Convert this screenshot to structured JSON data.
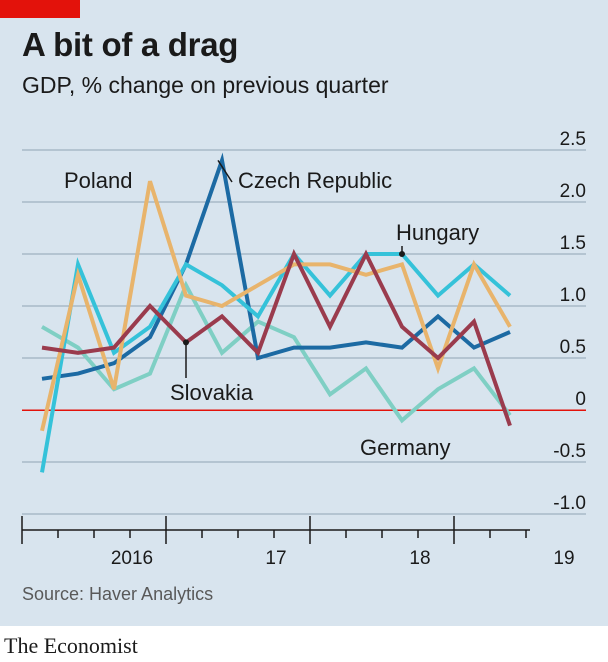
{
  "title": "A bit of a drag",
  "subtitle": "GDP, % change on previous quarter",
  "source": "Source: Haver Analytics",
  "brand": "The Economist",
  "colors": {
    "red_tag": "#e3120b",
    "zero_line": "#e3120b",
    "Czech Republic": "#1c6aa3",
    "Poland": "#e8b46c",
    "Hungary": "#35c2d9",
    "Slovakia": "#9a3b4d",
    "Germany": "#7fcfc4"
  },
  "chart_data": {
    "type": "line",
    "x": [
      "2015Q4",
      "2016Q1",
      "2016Q2",
      "2016Q3",
      "2016Q4",
      "2017Q1",
      "2017Q2",
      "2017Q3",
      "2017Q4",
      "2018Q1",
      "2018Q2",
      "2018Q3",
      "2018Q4",
      "2019Q1"
    ],
    "x_ticks": [
      {
        "label": "2016",
        "between": [
          "2016Q1",
          "2016Q4"
        ]
      },
      {
        "label": "17",
        "between": [
          "2017Q1",
          "2017Q4"
        ]
      },
      {
        "label": "18",
        "between": [
          "2018Q1",
          "2018Q4"
        ]
      },
      {
        "label": "19",
        "between": [
          "2019Q1",
          "2019Q4"
        ]
      }
    ],
    "ylim": [
      -1.0,
      2.5
    ],
    "yticks": [
      2.5,
      2.0,
      1.5,
      1.0,
      0.5,
      0,
      -0.5,
      -1.0
    ],
    "ytick_labels": [
      "2.5",
      "2.0",
      "1.5",
      "1.0",
      "0.5",
      "0",
      "-0.5",
      "-1.0"
    ],
    "series": [
      {
        "name": "Germany",
        "values": [
          0.8,
          0.6,
          0.2,
          0.35,
          1.2,
          0.55,
          0.85,
          0.7,
          0.15,
          0.4,
          -0.1,
          0.2,
          0.4,
          -0.05
        ]
      },
      {
        "name": "Czech Republic",
        "values": [
          0.3,
          0.35,
          0.45,
          0.7,
          1.4,
          2.4,
          0.5,
          0.6,
          0.6,
          0.65,
          0.6,
          0.9,
          0.6,
          0.75
        ]
      },
      {
        "name": "Hungary",
        "values": [
          -0.6,
          1.4,
          0.55,
          0.8,
          1.4,
          1.2,
          0.9,
          1.5,
          1.1,
          1.5,
          1.5,
          1.1,
          1.4,
          1.1
        ]
      },
      {
        "name": "Poland",
        "values": [
          -0.2,
          1.3,
          0.2,
          2.2,
          1.1,
          1.0,
          1.2,
          1.4,
          1.4,
          1.3,
          1.4,
          0.4,
          1.4,
          0.8
        ]
      },
      {
        "name": "Slovakia",
        "values": [
          0.6,
          0.55,
          0.6,
          1.0,
          0.65,
          0.9,
          0.55,
          1.5,
          0.8,
          1.5,
          0.8,
          0.5,
          0.85,
          -0.15
        ]
      }
    ],
    "annotations": [
      {
        "text": "Poland",
        "series": "Poland"
      },
      {
        "text": "Czech Republic",
        "series": "Czech Republic"
      },
      {
        "text": "Hungary",
        "series": "Hungary"
      },
      {
        "text": "Slovakia",
        "series": "Slovakia"
      },
      {
        "text": "Germany",
        "series": "Germany"
      }
    ]
  }
}
